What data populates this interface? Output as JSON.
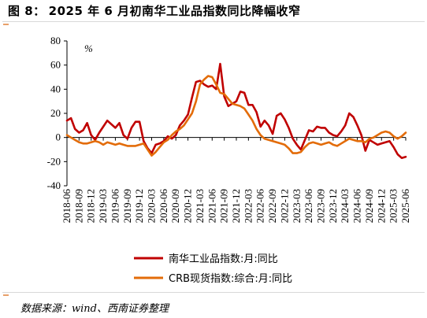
{
  "figure": {
    "title_prefix": "图 8：",
    "title_text": "2025 年 6 月初南华工业品指数同比降幅收窄",
    "source": "数据来源：wind、西南证券整理"
  },
  "colors": {
    "nanhua": "#c00000",
    "crb": "#e36c09"
  },
  "chart_data": {
    "type": "line",
    "title": "",
    "xlabel": "",
    "ylabel": "%",
    "ylim": [
      -40,
      80
    ],
    "yticks": [
      -40,
      -20,
      0,
      20,
      40,
      60,
      80
    ],
    "grid": false,
    "legend_position": "bottom",
    "x_tick_labels": [
      "2018-06",
      "2018-09",
      "2018-12",
      "2019-03",
      "2019-06",
      "2019-09",
      "2019-12",
      "2020-03",
      "2020-06",
      "2020-09",
      "2020-12",
      "2021-03",
      "2021-06",
      "2021-09",
      "2021-12",
      "2022-03",
      "2022-06",
      "2022-09",
      "2022-12",
      "2023-03",
      "2023-06",
      "2023-09",
      "2023-12",
      "2024-03",
      "2024-06",
      "2024-09",
      "2024-12",
      "2025-03",
      "2025-06"
    ],
    "x": [
      "2018-06",
      "2018-07",
      "2018-08",
      "2018-09",
      "2018-10",
      "2018-11",
      "2018-12",
      "2019-01",
      "2019-02",
      "2019-03",
      "2019-04",
      "2019-05",
      "2019-06",
      "2019-07",
      "2019-08",
      "2019-09",
      "2019-10",
      "2019-11",
      "2019-12",
      "2020-01",
      "2020-02",
      "2020-03",
      "2020-04",
      "2020-05",
      "2020-06",
      "2020-07",
      "2020-08",
      "2020-09",
      "2020-10",
      "2020-11",
      "2020-12",
      "2021-01",
      "2021-02",
      "2021-03",
      "2021-04",
      "2021-05",
      "2021-06",
      "2021-07",
      "2021-08",
      "2021-09",
      "2021-10",
      "2021-11",
      "2021-12",
      "2022-01",
      "2022-02",
      "2022-03",
      "2022-04",
      "2022-05",
      "2022-06",
      "2022-07",
      "2022-08",
      "2022-09",
      "2022-10",
      "2022-11",
      "2022-12",
      "2023-01",
      "2023-02",
      "2023-03",
      "2023-04",
      "2023-05",
      "2023-06",
      "2023-07",
      "2023-08",
      "2023-09",
      "2023-10",
      "2023-11",
      "2023-12",
      "2024-01",
      "2024-02",
      "2024-03",
      "2024-04",
      "2024-05",
      "2024-06",
      "2024-07",
      "2024-08",
      "2024-09",
      "2024-10",
      "2024-11",
      "2024-12",
      "2025-01",
      "2025-02",
      "2025-03",
      "2025-04",
      "2025-05",
      "2025-06"
    ],
    "series": [
      {
        "name": "南华工业品指数:月:同比",
        "color_key": "nanhua",
        "values": [
          14,
          16,
          7,
          4,
          6,
          12,
          2,
          -2,
          4,
          9,
          14,
          11,
          8,
          12,
          2,
          -1,
          8,
          13,
          13,
          -3,
          -9,
          -13,
          -6,
          -5,
          -3,
          1,
          -1,
          2,
          10,
          14,
          19,
          33,
          46,
          47,
          44,
          42,
          43,
          40,
          61,
          34,
          26,
          28,
          30,
          38,
          37,
          27,
          27,
          21,
          9,
          14,
          10,
          3,
          18,
          20,
          15,
          8,
          -1,
          -6,
          -10,
          -2,
          6,
          5,
          9,
          8,
          8,
          4,
          2,
          1,
          5,
          10,
          20,
          17,
          10,
          2,
          -11,
          -2,
          -4,
          -6,
          -5,
          -4,
          -3,
          -8,
          -14,
          -17,
          -16
        ]
      },
      {
        "name": "CRB现货指数:综合:月:同比",
        "color_key": "crb",
        "values": [
          2,
          0,
          -2,
          -4,
          -5,
          -5,
          -4,
          -3,
          -4,
          -6,
          -4,
          -5,
          -6,
          -5,
          -6,
          -7,
          -7,
          -7,
          -6,
          -5,
          -10,
          -15,
          -12,
          -8,
          -4,
          -2,
          2,
          5,
          7,
          10,
          15,
          20,
          30,
          44,
          48,
          51,
          50,
          44,
          37,
          36,
          32,
          28,
          27,
          26,
          24,
          19,
          14,
          7,
          2,
          -1,
          -2,
          -3,
          -4,
          -5,
          -6,
          -9,
          -13,
          -13,
          -12,
          -8,
          -5,
          -4,
          -5,
          -6,
          -5,
          -4,
          -6,
          -7,
          -5,
          -3,
          -1,
          -2,
          -3,
          -3,
          -4,
          -1,
          0,
          2,
          4,
          5,
          4,
          1,
          -1,
          1,
          4
        ]
      }
    ]
  }
}
